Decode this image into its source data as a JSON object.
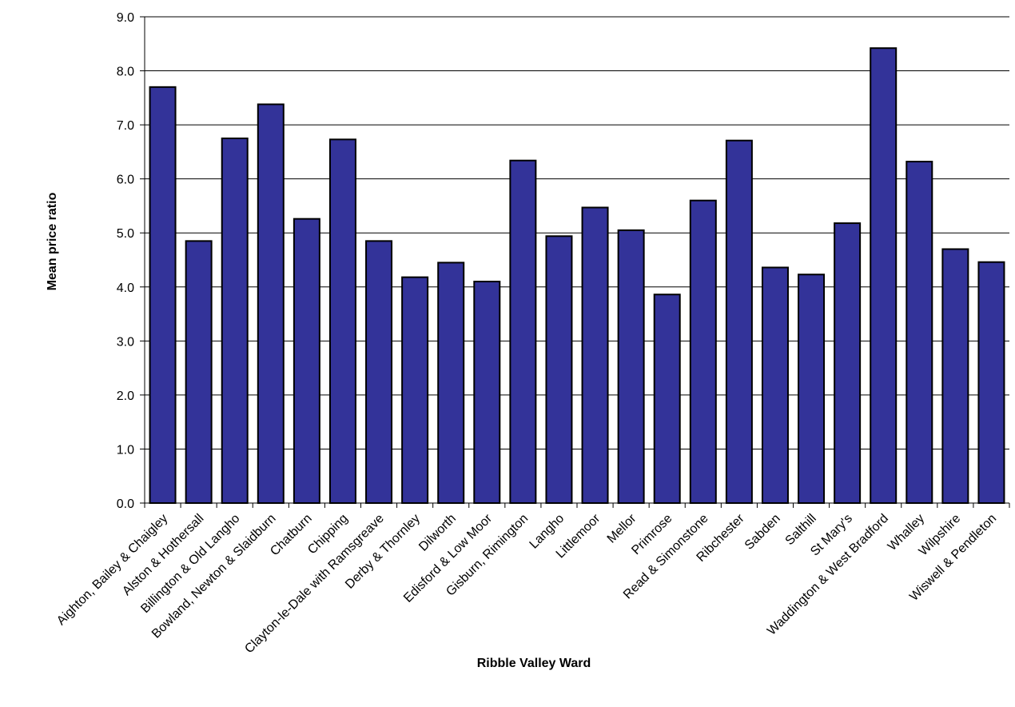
{
  "chart_data": {
    "type": "bar",
    "title": "",
    "xlabel": "Ribble Valley Ward",
    "ylabel": "Mean price ratio",
    "ylim": [
      0,
      9
    ],
    "yticks": [
      "0.0",
      "1.0",
      "2.0",
      "3.0",
      "4.0",
      "5.0",
      "6.0",
      "7.0",
      "8.0",
      "9.0"
    ],
    "grid": "horizontal",
    "legend": "none",
    "bar_color": "#333399",
    "categories": [
      "Aighton, Bailey & Chaigley",
      "Alston & Hothersall",
      "Billington & Old Langho",
      "Bowland, Newton & Slaidburn",
      "Chatburn",
      "Chipping",
      "Clayton-le-Dale with Ramsgreave",
      "Derby & Thornley",
      "Dilworth",
      "Edisford & Low Moor",
      "Gisburn, Rimington",
      "Langho",
      "Littlemoor",
      "Mellor",
      "Primrose",
      "Read & Simonstone",
      "Ribchester",
      "Sabden",
      "Salthill",
      "St Mary's",
      "Waddington & West Bradford",
      "Whalley",
      "Wilpshire",
      "Wiswell & Pendleton"
    ],
    "values": [
      7.7,
      4.85,
      6.75,
      7.38,
      5.26,
      6.73,
      4.85,
      4.18,
      4.45,
      4.1,
      6.34,
      4.94,
      5.47,
      5.05,
      3.86,
      5.6,
      6.71,
      4.36,
      4.23,
      5.18,
      8.42,
      6.32,
      4.7,
      4.46
    ]
  }
}
